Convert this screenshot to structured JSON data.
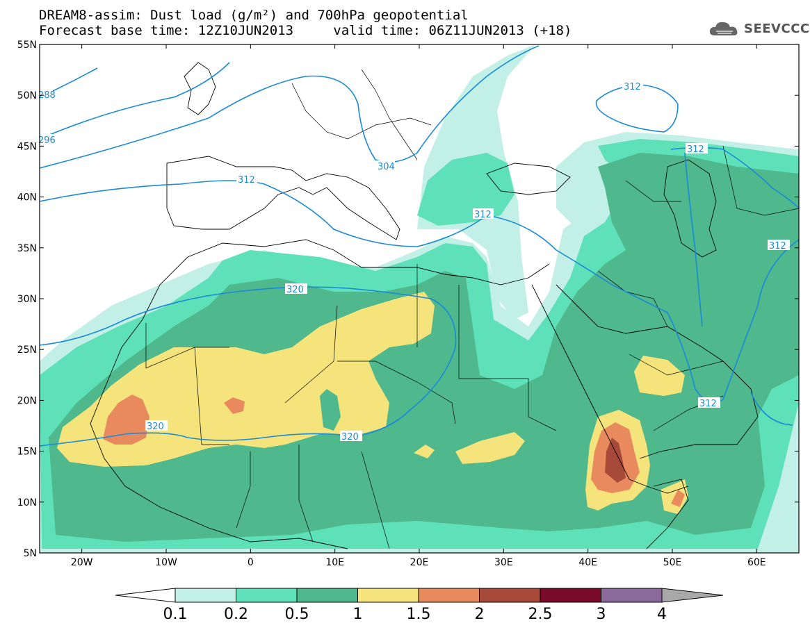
{
  "title": {
    "line1": "DREAM8-assim: Dust load (g/m²) and 700hPa geopotential",
    "line2_left": "Forecast base time: 12Z10JUN2013",
    "line2_right": "valid time: 06Z11JUN2013 (+18)"
  },
  "logo": {
    "text": "SEEVCCC",
    "icon": "cloud-icon"
  },
  "map": {
    "lon_range": [
      -25,
      65
    ],
    "lat_range": [
      5,
      55
    ],
    "lat_ticks": [
      {
        "value": 55,
        "label": "55N"
      },
      {
        "value": 50,
        "label": "50N"
      },
      {
        "value": 45,
        "label": "45N"
      },
      {
        "value": 40,
        "label": "40N"
      },
      {
        "value": 35,
        "label": "35N"
      },
      {
        "value": 30,
        "label": "30N"
      },
      {
        "value": 25,
        "label": "25N"
      },
      {
        "value": 20,
        "label": "20N"
      },
      {
        "value": 15,
        "label": "15N"
      },
      {
        "value": 10,
        "label": "10N"
      },
      {
        "value": 5,
        "label": "5N"
      }
    ],
    "lon_ticks": [
      {
        "value": -20,
        "label": "20W"
      },
      {
        "value": -10,
        "label": "10W"
      },
      {
        "value": 0,
        "label": "0"
      },
      {
        "value": 10,
        "label": "10E"
      },
      {
        "value": 20,
        "label": "20E"
      },
      {
        "value": 30,
        "label": "30E"
      },
      {
        "value": 40,
        "label": "40E"
      },
      {
        "value": 50,
        "label": "50E"
      },
      {
        "value": 60,
        "label": "60E"
      }
    ],
    "contour_labels": [
      "288",
      "296",
      "304",
      "312",
      "312",
      "312",
      "312",
      "312",
      "320",
      "320",
      "320"
    ]
  },
  "colorbar": {
    "colors": [
      "#c2efe6",
      "#5ee0b8",
      "#4fb88c",
      "#f5e47c",
      "#e88a5e",
      "#a84a3a",
      "#7a0a2a",
      "#8a6a9c"
    ],
    "labels": [
      "0.1",
      "0.2",
      "0.5",
      "1",
      "1.5",
      "2",
      "2.5",
      "3",
      "4"
    ]
  },
  "colors": {
    "contour": "#1a8ad8",
    "dust_01": "#c2efe6",
    "dust_02": "#5ee0b8",
    "dust_05": "#4fb88c",
    "dust_1": "#f5e47c",
    "dust_15": "#e88a5e",
    "dust_2": "#a84a3a"
  }
}
